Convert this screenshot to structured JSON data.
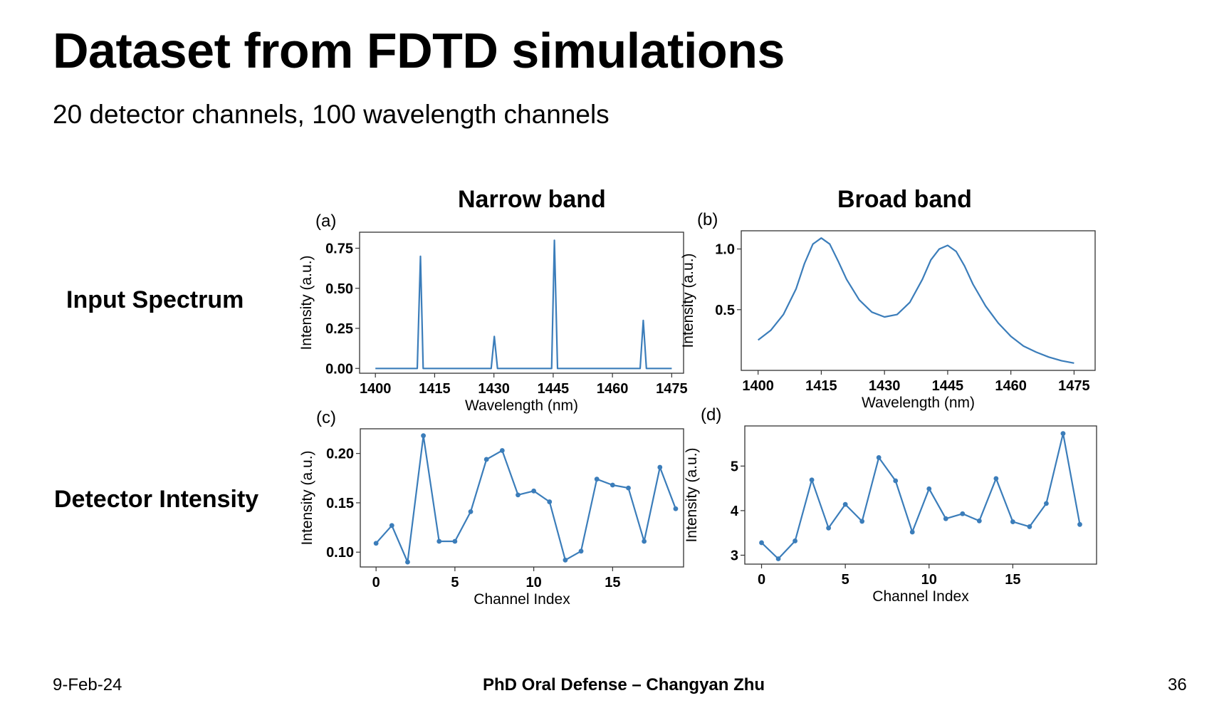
{
  "slide": {
    "title": "Dataset from FDTD simulations",
    "subtitle": "20 detector channels,  100 wavelength channels",
    "col_heads": [
      "Narrow band",
      "Broad band"
    ],
    "row_heads": [
      "Input Spectrum",
      "Detector Intensity"
    ],
    "footer": {
      "date": "9-Feb-24",
      "center": "PhD Oral Defense – Changyan Zhu",
      "page": "36"
    }
  },
  "colors": {
    "line": "#3b7dba",
    "axes": "#333333"
  },
  "chart_data": [
    {
      "panel": "(a)",
      "type": "line",
      "xlabel": "Wavelength (nm)",
      "ylabel": "Intensity (a.u.)",
      "xlim": [
        1396,
        1478
      ],
      "ylim": [
        -0.03,
        0.85
      ],
      "xticks": [
        1400,
        1415,
        1430,
        1445,
        1460,
        1475
      ],
      "yticks": [
        0.0,
        0.25,
        0.5,
        0.75
      ],
      "ytick_labels": [
        "0.00",
        "0.25",
        "0.50",
        "0.75"
      ],
      "markers": false,
      "x": [
        1400,
        1410.6,
        1411.4,
        1412.1,
        1429.3,
        1430.1,
        1430.9,
        1444.6,
        1445.3,
        1446.1,
        1467.0,
        1467.8,
        1468.6,
        1475
      ],
      "y": [
        0,
        0,
        0.7,
        0,
        0,
        0.2,
        0,
        0,
        0.8,
        0,
        0,
        0.3,
        0,
        0
      ]
    },
    {
      "panel": "(b)",
      "type": "line",
      "xlabel": "Wavelength (nm)",
      "ylabel": "Intensity (a.u.)",
      "xlim": [
        1396,
        1480
      ],
      "ylim": [
        0.0,
        1.15
      ],
      "xticks": [
        1400,
        1415,
        1430,
        1445,
        1460,
        1475
      ],
      "yticks": [
        0.5,
        1.0
      ],
      "ytick_labels": [
        "0.5",
        "1.0"
      ],
      "markers": false,
      "x": [
        1400,
        1403,
        1406,
        1409,
        1411,
        1413,
        1415,
        1417,
        1419,
        1421,
        1424,
        1427,
        1430,
        1433,
        1436,
        1439,
        1441,
        1443,
        1445,
        1447,
        1449,
        1451,
        1454,
        1457,
        1460,
        1463,
        1466,
        1469,
        1472,
        1475
      ],
      "y": [
        0.25,
        0.33,
        0.46,
        0.67,
        0.88,
        1.04,
        1.09,
        1.04,
        0.9,
        0.75,
        0.58,
        0.48,
        0.44,
        0.46,
        0.56,
        0.75,
        0.91,
        1.0,
        1.03,
        0.98,
        0.86,
        0.71,
        0.53,
        0.39,
        0.28,
        0.2,
        0.15,
        0.11,
        0.08,
        0.06
      ]
    },
    {
      "panel": "(c)",
      "type": "line",
      "xlabel": "Channel Index",
      "ylabel": "Intensity (a.u.)",
      "xlim": [
        -1,
        19.5
      ],
      "ylim": [
        0.085,
        0.225
      ],
      "xticks": [
        0,
        5,
        10,
        15
      ],
      "yticks": [
        0.1,
        0.15,
        0.2
      ],
      "ytick_labels": [
        "0.10",
        "0.15",
        "0.20"
      ],
      "markers": true,
      "x": [
        0,
        1,
        2,
        3,
        4,
        5,
        6,
        7,
        8,
        9,
        10,
        11,
        12,
        13,
        14,
        15,
        16,
        17,
        18,
        19
      ],
      "y": [
        0.109,
        0.127,
        0.09,
        0.218,
        0.111,
        0.111,
        0.141,
        0.194,
        0.203,
        0.158,
        0.162,
        0.151,
        0.092,
        0.101,
        0.174,
        0.168,
        0.165,
        0.111,
        0.186,
        0.144
      ]
    },
    {
      "panel": "(d)",
      "type": "line",
      "xlabel": "Channel Index",
      "ylabel": "Intensity (a.u.)",
      "xlim": [
        -1,
        20
      ],
      "ylim": [
        2.8,
        5.9
      ],
      "xticks": [
        0,
        5,
        10,
        15
      ],
      "yticks": [
        3,
        4,
        5
      ],
      "ytick_labels": [
        "3",
        "4",
        "5"
      ],
      "markers": true,
      "x": [
        0,
        1,
        2,
        3,
        4,
        5,
        6,
        7,
        8,
        9,
        10,
        11,
        12,
        13,
        14,
        15,
        16,
        17,
        18,
        19
      ],
      "y": [
        3.28,
        2.92,
        3.32,
        4.69,
        3.61,
        4.14,
        3.76,
        5.19,
        4.67,
        3.52,
        4.49,
        3.82,
        3.93,
        3.77,
        4.72,
        3.75,
        3.64,
        4.16,
        5.73,
        3.69
      ]
    }
  ]
}
